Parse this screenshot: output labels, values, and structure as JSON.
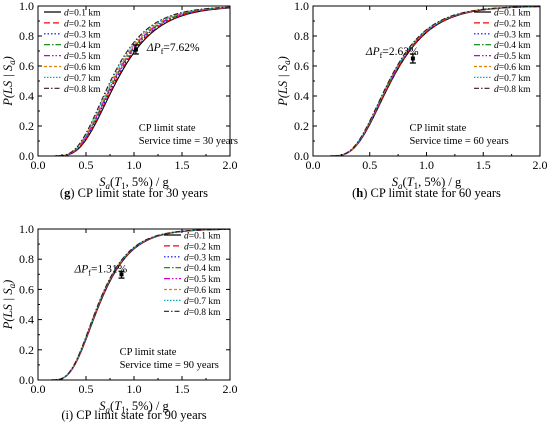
{
  "chart_data": [
    {
      "type": "line",
      "caption_prefix": "(g)",
      "caption_text": "CP limit state for 30 years",
      "ylabel": "P(LS | Sa)",
      "xlabel": "Sa(T1, 5%) / g",
      "xlim": [
        0.0,
        2.0
      ],
      "ylim": [
        0.0,
        1.0
      ],
      "xticks": [
        "0.0",
        "0.5",
        "1.0",
        "1.5",
        "2.0"
      ],
      "yticks": [
        "0.0",
        "0.2",
        "0.4",
        "0.6",
        "0.8",
        "1.0"
      ],
      "annotation_delta": "ΔPf=7.62%",
      "error_bar": {
        "x": 1.02,
        "y": 0.71,
        "low": 0.68,
        "high": 0.74
      },
      "limit_state": "CP limit state",
      "service_time": "Service time = 30 years",
      "legend_position": "top-left",
      "series": [
        {
          "name": "d=0.1 km",
          "median": 0.82,
          "beta": 0.4
        },
        {
          "name": "d=0.2 km",
          "median": 0.81,
          "beta": 0.4
        },
        {
          "name": "d=0.3 km",
          "median": 0.8,
          "beta": 0.4
        },
        {
          "name": "d=0.4 km",
          "median": 0.79,
          "beta": 0.4
        },
        {
          "name": "d=0.5 km",
          "median": 0.785,
          "beta": 0.4
        },
        {
          "name": "d=0.6 km",
          "median": 0.775,
          "beta": 0.4
        },
        {
          "name": "d=0.7 km",
          "median": 0.765,
          "beta": 0.4
        },
        {
          "name": "d=0.8 km",
          "median": 0.755,
          "beta": 0.4
        }
      ]
    },
    {
      "type": "line",
      "caption_prefix": "(h)",
      "caption_text": "CP limit state for 60 years",
      "ylabel": "P(LS | Sa)",
      "xlabel": "Sa(T1, 5%) / g",
      "xlim": [
        0.0,
        2.0
      ],
      "ylim": [
        0.0,
        1.0
      ],
      "xticks": [
        "0.0",
        "0.5",
        "1.0",
        "1.5",
        "2.0"
      ],
      "yticks": [
        "0.0",
        "0.2",
        "0.4",
        "0.6",
        "0.8",
        "1.0"
      ],
      "annotation_delta": "ΔPf=2.63%",
      "error_bar": {
        "x": 0.88,
        "y": 0.65,
        "low": 0.62,
        "high": 0.68
      },
      "limit_state": "CP limit state",
      "service_time": "Service time = 60 years",
      "legend_position": "top-right",
      "series": [
        {
          "name": "d=0.1 km",
          "median": 0.69,
          "beta": 0.4
        },
        {
          "name": "d=0.2 km",
          "median": 0.687,
          "beta": 0.4
        },
        {
          "name": "d=0.3 km",
          "median": 0.684,
          "beta": 0.4
        },
        {
          "name": "d=0.4 km",
          "median": 0.681,
          "beta": 0.4
        },
        {
          "name": "d=0.5 km",
          "median": 0.678,
          "beta": 0.4
        },
        {
          "name": "d=0.6 km",
          "median": 0.675,
          "beta": 0.4
        },
        {
          "name": "d=0.7 km",
          "median": 0.672,
          "beta": 0.4
        },
        {
          "name": "d=0.8 km",
          "median": 0.669,
          "beta": 0.4
        }
      ]
    },
    {
      "type": "line",
      "caption_prefix": "(i)",
      "caption_text": "CP limit state for 90 years",
      "ylabel": "P(LS | Sa)",
      "xlabel": "Sa(T1, 5%) / g",
      "xlim": [
        0.0,
        2.0
      ],
      "ylim": [
        0.0,
        1.0
      ],
      "xticks": [
        "0.0",
        "0.5",
        "1.0",
        "1.5",
        "2.0"
      ],
      "yticks": [
        "0.0",
        "0.2",
        "0.4",
        "0.6",
        "0.8",
        "1.0"
      ],
      "annotation_delta": "ΔPf=1.31%",
      "error_bar": {
        "x": 0.87,
        "y": 0.7,
        "low": 0.675,
        "high": 0.72
      },
      "limit_state": "CP limit state",
      "service_time": "Service time = 90 years",
      "legend_position": "top-right",
      "series": [
        {
          "name": "d=0.1 km",
          "median": 0.64,
          "beta": 0.4
        },
        {
          "name": "d=0.2 km",
          "median": 0.638,
          "beta": 0.4
        },
        {
          "name": "d=0.3 km",
          "median": 0.636,
          "beta": 0.4
        },
        {
          "name": "d=0.4 km",
          "median": 0.634,
          "beta": 0.4
        },
        {
          "name": "d=0.5 km",
          "median": 0.632,
          "beta": 0.4
        },
        {
          "name": "d=0.6 km",
          "median": 0.63,
          "beta": 0.4
        },
        {
          "name": "d=0.7 km",
          "median": 0.628,
          "beta": 0.4
        },
        {
          "name": "d=0.8 km",
          "median": 0.626,
          "beta": 0.4
        }
      ]
    }
  ],
  "series_styles": [
    {
      "color": "#000000",
      "dash": ""
    },
    {
      "color": "#ff0000",
      "dash": "6,3"
    },
    {
      "color": "#0000ff",
      "dash": "1.5,2"
    },
    {
      "color": "#008000",
      "dash": "6,2,1.5,2"
    },
    {
      "color": "#cc00cc",
      "dash": "6,2,1.5,2,1.5,2"
    },
    {
      "color": "#e08000",
      "dash": "3,2"
    },
    {
      "color": "#00b0c0",
      "dash": "1.5,1.5"
    },
    {
      "color": "#3a1a1a",
      "dash": "5,2,1.5,2"
    }
  ]
}
